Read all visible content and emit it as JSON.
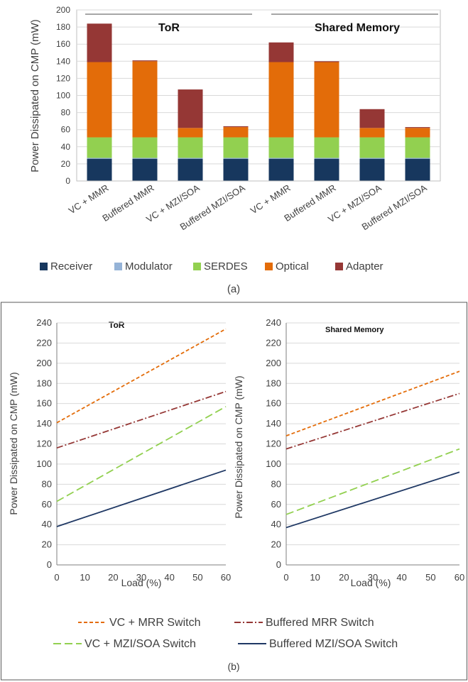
{
  "panel_a": {
    "caption": "(a)",
    "group_labels": [
      "ToR",
      "Shared Memory"
    ],
    "chart_data": {
      "type": "bar",
      "stacked": true,
      "categories": [
        "VC + MMR",
        "Buffered MMR",
        "VC + MZI/SOA",
        "Buffered MZI/SOA",
        "VC + MMR",
        "Buffered MMR",
        "VC + MZI/SOA",
        "Buffered MZI/SOA"
      ],
      "groups": [
        "ToR",
        "ToR",
        "ToR",
        "ToR",
        "Shared Memory",
        "Shared Memory",
        "Shared Memory",
        "Shared Memory"
      ],
      "series": [
        {
          "name": "Receiver",
          "color": "#17375e",
          "values": [
            26,
            26,
            26,
            26,
            26,
            26,
            26,
            26
          ]
        },
        {
          "name": "Modulator",
          "color": "#95b3d7",
          "values": [
            1,
            1,
            1,
            1,
            1,
            1,
            1,
            1
          ]
        },
        {
          "name": "SERDES",
          "color": "#92d050",
          "values": [
            24,
            24,
            24,
            24,
            24,
            24,
            24,
            24
          ]
        },
        {
          "name": "Optical",
          "color": "#e36c09",
          "values": [
            88,
            89,
            11,
            12,
            88,
            88,
            11,
            11
          ]
        },
        {
          "name": "Adapter",
          "color": "#953735",
          "values": [
            45,
            1,
            45,
            1,
            23,
            1,
            22,
            1
          ]
        }
      ],
      "ylabel": "Power Dissipated on CMP (mW)",
      "ylim": [
        0,
        200
      ],
      "yticks": [
        0,
        20,
        40,
        60,
        80,
        100,
        120,
        140,
        160,
        180,
        200
      ],
      "legend_position": "bottom"
    }
  },
  "panel_b": {
    "caption": "(b)",
    "legend": [
      {
        "name": "VC + MRR Switch",
        "color": "#e36c09",
        "dash": "5,3"
      },
      {
        "name": "Buffered MRR Switch",
        "color": "#953735",
        "dash": "9,3,2,3"
      },
      {
        "name": "VC + MZI/SOA Switch",
        "color": "#92d050",
        "dash": "11,5"
      },
      {
        "name": "Buffered MZI/SOA Switch",
        "color": "#1f3864",
        "dash": ""
      }
    ],
    "chart_data": [
      {
        "type": "line",
        "title": "ToR",
        "xlabel": "Load (%)",
        "ylabel": "Power Dissipated on CMP (mW)",
        "xlim": [
          0,
          60
        ],
        "ylim": [
          0,
          240
        ],
        "xticks": [
          0,
          10,
          20,
          30,
          40,
          50,
          60
        ],
        "yticks": [
          0,
          20,
          40,
          60,
          80,
          100,
          120,
          140,
          160,
          180,
          200,
          220,
          240
        ],
        "series": [
          {
            "name": "VC + MRR Switch",
            "x": [
              0,
              60
            ],
            "y": [
              141,
              234
            ]
          },
          {
            "name": "Buffered MRR Switch",
            "x": [
              0,
              60
            ],
            "y": [
              116,
              172
            ]
          },
          {
            "name": "VC + MZI/SOA Switch",
            "x": [
              0,
              60
            ],
            "y": [
              63,
              157
            ]
          },
          {
            "name": "Buffered MZI/SOA Switch",
            "x": [
              0,
              60
            ],
            "y": [
              38,
              94
            ]
          }
        ]
      },
      {
        "type": "line",
        "title": "Shared Memory",
        "xlabel": "Load (%)",
        "ylabel": "Power Dissipated on CMP (mW)",
        "xlim": [
          0,
          60
        ],
        "ylim": [
          0,
          240
        ],
        "xticks": [
          0,
          10,
          20,
          30,
          40,
          50,
          60
        ],
        "yticks": [
          0,
          20,
          40,
          60,
          80,
          100,
          120,
          140,
          160,
          180,
          200,
          220,
          240
        ],
        "series": [
          {
            "name": "VC + MRR Switch",
            "x": [
              0,
              60
            ],
            "y": [
              128,
              192
            ]
          },
          {
            "name": "Buffered MRR Switch",
            "x": [
              0,
              60
            ],
            "y": [
              115,
              170
            ]
          },
          {
            "name": "VC + MZI/SOA Switch",
            "x": [
              0,
              60
            ],
            "y": [
              50,
              115
            ]
          },
          {
            "name": "Buffered MZI/SOA Switch",
            "x": [
              0,
              60
            ],
            "y": [
              37,
              92
            ]
          }
        ]
      }
    ]
  }
}
